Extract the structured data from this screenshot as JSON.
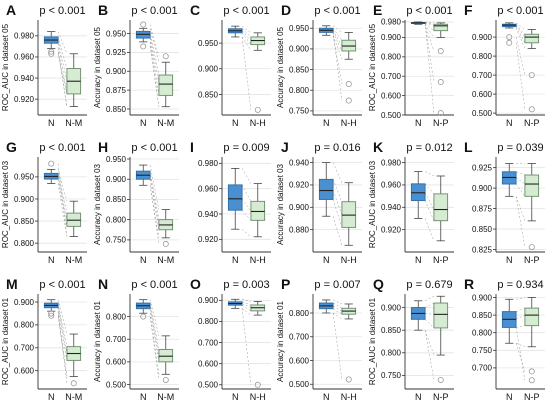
{
  "colors": {
    "box_n": "#4a8fcf",
    "box_n_edge": "#2e6ea8",
    "box_other": "#d6ecd2",
    "box_other_edge": "#6a8a6a",
    "pair_line": "#9a9a9a",
    "grid": "#e4e4e4"
  },
  "chart_data": [
    {
      "type": "box",
      "panel": "A",
      "pvalue": "p < 0.001",
      "ylabel": "ROC_AUC in dataset 05",
      "categories": [
        "N",
        "N-M"
      ],
      "ylim": [
        0.905,
        0.995
      ],
      "yticks": [
        0.92,
        0.94,
        0.96,
        0.98
      ],
      "yticklabels": [
        "0.920",
        "0.940",
        "0.960",
        "0.980"
      ],
      "boxes": [
        {
          "q1": 0.973,
          "median": 0.976,
          "q3": 0.979,
          "whislo": 0.968,
          "whishi": 0.984,
          "outliers": [
            0.965,
            0.963
          ]
        },
        {
          "q1": 0.925,
          "median": 0.937,
          "q3": 0.949,
          "whislo": 0.913,
          "whishi": 0.963,
          "outliers": []
        }
      ]
    },
    {
      "type": "box",
      "panel": "B",
      "pvalue": "p < 0.001",
      "ylabel": "Accuracy in dataset 05",
      "categories": [
        "N",
        "N-M"
      ],
      "ylim": [
        0.842,
        0.968
      ],
      "yticks": [
        0.85,
        0.875,
        0.9,
        0.925,
        0.95
      ],
      "yticklabels": [
        "0.850",
        "0.875",
        "0.900",
        "0.925",
        "0.950"
      ],
      "boxes": [
        {
          "q1": 0.944,
          "median": 0.949,
          "q3": 0.953,
          "whislo": 0.939,
          "whishi": 0.957,
          "outliers": [
            0.962,
            0.933
          ]
        },
        {
          "q1": 0.868,
          "median": 0.883,
          "q3": 0.895,
          "whislo": 0.853,
          "whishi": 0.912,
          "outliers": [
            0.92
          ]
        }
      ]
    },
    {
      "type": "box",
      "panel": "C",
      "pvalue": "p < 0.001",
      "ylabel": "",
      "categories": [
        "N",
        "N-H"
      ],
      "ylim": [
        0.81,
        0.995
      ],
      "yticks": [
        0.85,
        0.9,
        0.95
      ],
      "yticklabels": [
        "0.850",
        "0.900",
        "0.950"
      ],
      "boxes": [
        {
          "q1": 0.97,
          "median": 0.974,
          "q3": 0.978,
          "whislo": 0.962,
          "whishi": 0.983,
          "outliers": []
        },
        {
          "q1": 0.947,
          "median": 0.955,
          "q3": 0.962,
          "whislo": 0.936,
          "whishi": 0.97,
          "outliers": [
            0.82
          ]
        }
      ]
    },
    {
      "type": "box",
      "panel": "D",
      "pvalue": "p < 0.001",
      "ylabel": "Accuracy in dataset 05",
      "categories": [
        "N",
        "N-H"
      ],
      "ylim": [
        0.74,
        0.97
      ],
      "yticks": [
        0.75,
        0.8,
        0.85,
        0.9,
        0.95
      ],
      "yticklabels": [
        "0.750",
        "0.800",
        "0.850",
        "0.900",
        "0.950"
      ],
      "boxes": [
        {
          "q1": 0.94,
          "median": 0.945,
          "q3": 0.95,
          "whislo": 0.933,
          "whishi": 0.956,
          "outliers": []
        },
        {
          "q1": 0.895,
          "median": 0.907,
          "q3": 0.921,
          "whislo": 0.875,
          "whishi": 0.94,
          "outliers": [
            0.815,
            0.775
          ]
        }
      ]
    },
    {
      "type": "box",
      "panel": "E",
      "pvalue": "p < 0.001",
      "ylabel": "ROC_AUC in dataset 05",
      "categories": [
        "N",
        "N-P"
      ],
      "ylim": [
        0.5,
        0.99
      ],
      "yticks": [
        0.5,
        0.6,
        0.7,
        0.8,
        0.9,
        0.98
      ],
      "yticklabels": [
        "0.500",
        "0.600",
        "0.700",
        "0.800",
        "0.900",
        "0.980"
      ],
      "boxes": [
        {
          "q1": 0.973,
          "median": 0.975,
          "q3": 0.977,
          "whislo": 0.968,
          "whishi": 0.98,
          "outliers": []
        },
        {
          "q1": 0.935,
          "median": 0.96,
          "q3": 0.968,
          "whislo": 0.9,
          "whishi": 0.975,
          "outliers": [
            0.83,
            0.67,
            0.51
          ]
        }
      ]
    },
    {
      "type": "box",
      "panel": "F",
      "pvalue": "p < 0.001",
      "ylabel": "",
      "categories": [
        "N",
        "N-P"
      ],
      "ylim": [
        0.49,
        0.99
      ],
      "yticks": [
        0.5,
        0.6,
        0.7,
        0.8,
        0.9
      ],
      "yticklabels": [
        "0.500",
        "0.600",
        "0.700",
        "0.800",
        "0.900"
      ],
      "boxes": [
        {
          "q1": 0.955,
          "median": 0.963,
          "q3": 0.968,
          "whislo": 0.948,
          "whishi": 0.975,
          "outliers": [
            0.9,
            0.87
          ]
        },
        {
          "q1": 0.87,
          "median": 0.9,
          "q3": 0.915,
          "whislo": 0.84,
          "whishi": 0.94,
          "outliers": [
            0.7,
            0.52
          ]
        }
      ]
    },
    {
      "type": "box",
      "panel": "G",
      "pvalue": "p < 0.001",
      "ylabel": "ROC_AUC in dataset 03",
      "categories": [
        "N",
        "N-M"
      ],
      "ylim": [
        0.78,
        0.995
      ],
      "yticks": [
        0.8,
        0.85,
        0.9,
        0.95
      ],
      "yticklabels": [
        "0.800",
        "0.850",
        "0.900",
        "0.950"
      ],
      "boxes": [
        {
          "q1": 0.945,
          "median": 0.951,
          "q3": 0.958,
          "whislo": 0.935,
          "whishi": 0.967,
          "outliers": [
            0.98
          ]
        },
        {
          "q1": 0.838,
          "median": 0.852,
          "q3": 0.868,
          "whislo": 0.815,
          "whishi": 0.895,
          "outliers": []
        }
      ]
    },
    {
      "type": "box",
      "panel": "H",
      "pvalue": "p < 0.001",
      "ylabel": "Accuracy in dataset 03",
      "categories": [
        "N",
        "N-M"
      ],
      "ylim": [
        0.72,
        0.955
      ],
      "yticks": [
        0.75,
        0.8,
        0.85,
        0.9,
        0.95
      ],
      "yticklabels": [
        "0.750",
        "0.800",
        "0.850",
        "0.900",
        "0.950"
      ],
      "boxes": [
        {
          "q1": 0.9,
          "median": 0.91,
          "q3": 0.92,
          "whislo": 0.885,
          "whishi": 0.935,
          "outliers": []
        },
        {
          "q1": 0.775,
          "median": 0.787,
          "q3": 0.8,
          "whislo": 0.755,
          "whishi": 0.825,
          "outliers": [
            0.74
          ]
        }
      ]
    },
    {
      "type": "box",
      "panel": "I",
      "pvalue": "p = 0.009",
      "ylabel": "",
      "categories": [
        "N",
        "N-H"
      ],
      "ylim": [
        0.91,
        0.985
      ],
      "yticks": [
        0.92,
        0.94,
        0.96,
        0.98
      ],
      "yticklabels": [
        "0.920",
        "0.940",
        "0.960",
        "0.980"
      ],
      "boxes": [
        {
          "q1": 0.943,
          "median": 0.952,
          "q3": 0.963,
          "whislo": 0.928,
          "whishi": 0.976,
          "outliers": []
        },
        {
          "q1": 0.935,
          "median": 0.942,
          "q3": 0.95,
          "whislo": 0.922,
          "whishi": 0.964,
          "outliers": []
        }
      ]
    },
    {
      "type": "box",
      "panel": "J",
      "pvalue": "p = 0.016",
      "ylabel": "Accuracy in dataset 03",
      "categories": [
        "N",
        "N-H"
      ],
      "ylim": [
        0.86,
        0.945
      ],
      "yticks": [
        0.88,
        0.9,
        0.92,
        0.94
      ],
      "yticklabels": [
        "0.880",
        "0.900",
        "0.920",
        "0.940"
      ],
      "boxes": [
        {
          "q1": 0.907,
          "median": 0.915,
          "q3": 0.925,
          "whislo": 0.892,
          "whishi": 0.94,
          "outliers": []
        },
        {
          "q1": 0.882,
          "median": 0.893,
          "q3": 0.905,
          "whislo": 0.866,
          "whishi": 0.922,
          "outliers": []
        }
      ]
    },
    {
      "type": "box",
      "panel": "K",
      "pvalue": "p = 0.012",
      "ylabel": "ROC_AUC in dataset 03",
      "categories": [
        "N",
        "N-P"
      ],
      "ylim": [
        0.9,
        0.985
      ],
      "yticks": [
        0.92,
        0.94,
        0.96,
        0.98
      ],
      "yticklabels": [
        "0.920",
        "0.940",
        "0.960",
        "0.980"
      ],
      "boxes": [
        {
          "q1": 0.946,
          "median": 0.953,
          "q3": 0.961,
          "whislo": 0.93,
          "whishi": 0.972,
          "outliers": []
        },
        {
          "q1": 0.928,
          "median": 0.938,
          "q3": 0.952,
          "whislo": 0.91,
          "whishi": 0.968,
          "outliers": []
        }
      ]
    },
    {
      "type": "box",
      "panel": "L",
      "pvalue": "p = 0.039",
      "ylabel": "",
      "categories": [
        "N",
        "N-P"
      ],
      "ylim": [
        0.822,
        0.938
      ],
      "yticks": [
        0.825,
        0.85,
        0.875,
        0.9,
        0.925
      ],
      "yticklabels": [
        "0.825",
        "0.850",
        "0.875",
        "0.900",
        "0.925"
      ],
      "boxes": [
        {
          "q1": 0.905,
          "median": 0.913,
          "q3": 0.92,
          "whislo": 0.89,
          "whishi": 0.93,
          "outliers": []
        },
        {
          "q1": 0.89,
          "median": 0.905,
          "q3": 0.916,
          "whislo": 0.86,
          "whishi": 0.93,
          "outliers": [
            0.828
          ]
        }
      ]
    },
    {
      "type": "box",
      "panel": "M",
      "pvalue": "p < 0.001",
      "ylabel": "ROC_AUC in dataset 01",
      "categories": [
        "N",
        "N-M"
      ],
      "ylim": [
        0.52,
        0.935
      ],
      "yticks": [
        0.6,
        0.7,
        0.8,
        0.9
      ],
      "yticklabels": [
        "0.600",
        "0.700",
        "0.800",
        "0.900"
      ],
      "boxes": [
        {
          "q1": 0.875,
          "median": 0.885,
          "q3": 0.895,
          "whislo": 0.86,
          "whishi": 0.91,
          "outliers": [
            0.85,
            0.84
          ]
        },
        {
          "q1": 0.645,
          "median": 0.675,
          "q3": 0.705,
          "whislo": 0.575,
          "whishi": 0.76,
          "outliers": [
            0.545
          ]
        }
      ]
    },
    {
      "type": "box",
      "panel": "N",
      "pvalue": "p < 0.001",
      "ylabel": "Accuracy in dataset 01",
      "categories": [
        "N",
        "N-M"
      ],
      "ylim": [
        0.48,
        0.9
      ],
      "yticks": [
        0.5,
        0.6,
        0.7,
        0.8
      ],
      "yticklabels": [
        "0.500",
        "0.600",
        "0.700",
        "0.800"
      ],
      "boxes": [
        {
          "q1": 0.835,
          "median": 0.848,
          "q3": 0.86,
          "whislo": 0.815,
          "whishi": 0.875,
          "outliers": [
            0.8
          ]
        },
        {
          "q1": 0.6,
          "median": 0.625,
          "q3": 0.655,
          "whislo": 0.545,
          "whishi": 0.715,
          "outliers": [
            0.52
          ]
        }
      ]
    },
    {
      "type": "box",
      "panel": "O",
      "pvalue": "p = 0.003",
      "ylabel": "",
      "categories": [
        "N",
        "N-H"
      ],
      "ylim": [
        0.48,
        0.93
      ],
      "yticks": [
        0.5,
        0.6,
        0.7,
        0.8,
        0.9
      ],
      "yticklabels": [
        "0.500",
        "0.600",
        "0.700",
        "0.800",
        "0.900"
      ],
      "boxes": [
        {
          "q1": 0.877,
          "median": 0.885,
          "q3": 0.893,
          "whislo": 0.862,
          "whishi": 0.905,
          "outliers": []
        },
        {
          "q1": 0.85,
          "median": 0.865,
          "q3": 0.878,
          "whislo": 0.83,
          "whishi": 0.895,
          "outliers": [
            0.5
          ]
        }
      ]
    },
    {
      "type": "box",
      "panel": "P",
      "pvalue": "p = 0.007",
      "ylabel": "Accuracy in dataset 01",
      "categories": [
        "N",
        "N-H"
      ],
      "ylim": [
        0.48,
        0.88
      ],
      "yticks": [
        0.5,
        0.6,
        0.7,
        0.8
      ],
      "yticklabels": [
        "0.500",
        "0.600",
        "0.700",
        "0.800"
      ],
      "boxes": [
        {
          "q1": 0.818,
          "median": 0.83,
          "q3": 0.842,
          "whislo": 0.8,
          "whishi": 0.855,
          "outliers": []
        },
        {
          "q1": 0.795,
          "median": 0.808,
          "q3": 0.82,
          "whislo": 0.775,
          "whishi": 0.838,
          "outliers": [
            0.52
          ]
        }
      ]
    },
    {
      "type": "box",
      "panel": "Q",
      "pvalue": "p = 0.679",
      "ylabel": "ROC_AUC in dataset 01",
      "categories": [
        "N",
        "N-P"
      ],
      "ylim": [
        0.72,
        0.93
      ],
      "yticks": [
        0.75,
        0.8,
        0.85,
        0.9
      ],
      "yticklabels": [
        "0.750",
        "0.800",
        "0.850",
        "0.900"
      ],
      "boxes": [
        {
          "q1": 0.874,
          "median": 0.887,
          "q3": 0.9,
          "whislo": 0.85,
          "whishi": 0.915,
          "outliers": []
        },
        {
          "q1": 0.855,
          "median": 0.885,
          "q3": 0.91,
          "whislo": 0.795,
          "whishi": 0.925,
          "outliers": [
            0.74
          ]
        }
      ]
    },
    {
      "type": "box",
      "panel": "R",
      "pvalue": "p = 0.934",
      "ylabel": "",
      "categories": [
        "N",
        "N-P"
      ],
      "ylim": [
        0.64,
        0.91
      ],
      "yticks": [
        0.7,
        0.75,
        0.8,
        0.85,
        0.9
      ],
      "yticklabels": [
        "0.700",
        "0.750",
        "0.800",
        "0.850",
        "0.900"
      ],
      "boxes": [
        {
          "q1": 0.815,
          "median": 0.838,
          "q3": 0.86,
          "whislo": 0.77,
          "whishi": 0.895,
          "outliers": []
        },
        {
          "q1": 0.82,
          "median": 0.85,
          "q3": 0.87,
          "whislo": 0.76,
          "whishi": 0.9,
          "outliers": [
            0.69,
            0.665
          ]
        }
      ]
    }
  ]
}
